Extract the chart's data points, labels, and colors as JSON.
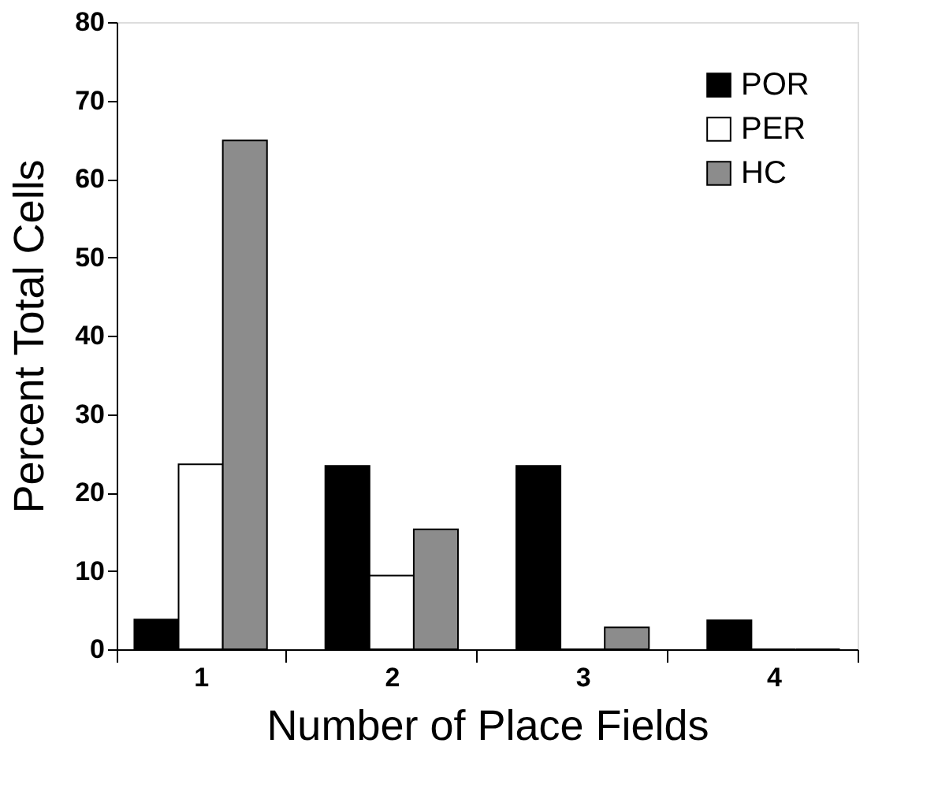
{
  "chart_data": {
    "type": "bar",
    "xlabel": "Number of Place Fields",
    "ylabel": "Percent Total Cells",
    "categories": [
      "1",
      "2",
      "3",
      "4"
    ],
    "series": [
      {
        "name": "POR",
        "color": "#000000",
        "values": [
          3.8,
          23.4,
          23.4,
          3.7
        ]
      },
      {
        "name": "PER",
        "color": "#ffffff",
        "values": [
          23.6,
          9.4,
          0,
          0
        ]
      },
      {
        "name": "HC",
        "color": "#8c8c8c",
        "values": [
          64.9,
          15.3,
          2.8,
          0
        ]
      }
    ],
    "ylim": [
      0,
      80
    ],
    "yticks": [
      0,
      10,
      20,
      30,
      40,
      50,
      60,
      70,
      80
    ],
    "grid": false,
    "legend": "top right"
  }
}
